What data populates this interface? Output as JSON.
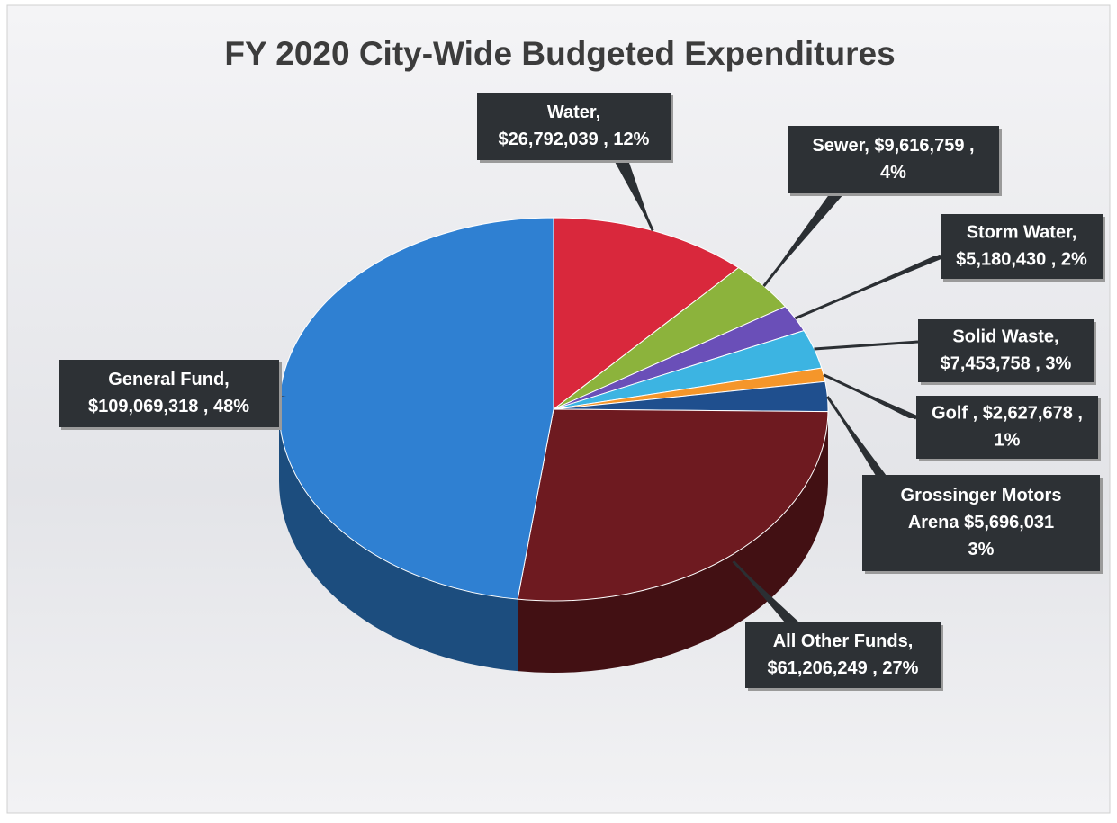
{
  "chart_data": {
    "type": "pie",
    "title": "FY 2020 City-Wide Budgeted Expenditures",
    "values": [
      26792039,
      9616759,
      5180430,
      7453758,
      2627678,
      5696031,
      61206249,
      109069318
    ],
    "value_labels": [
      [
        "Water,",
        "$26,792,039 , 12%"
      ],
      [
        "Sewer,  $9,616,759 ,",
        "4%"
      ],
      [
        "Storm Water,",
        "$5,180,430 , 2%"
      ],
      [
        "Solid Waste,",
        "$7,453,758 , 3%"
      ],
      [
        "Golf ,  $2,627,678 ,",
        "1%"
      ],
      [
        "Grossinger Motors",
        "Arena $5,696,031",
        "3%"
      ],
      [
        "All Other Funds,",
        "$61,206,249 , 27%"
      ],
      [
        "General Fund,",
        "$109,069,318 , 48%"
      ]
    ],
    "colors": [
      "#d9283c",
      "#8cb33c",
      "#6a4fb8",
      "#3cb4e2",
      "#f5962a",
      "#1f4f8e",
      "#6e1a20",
      "#2f80d2"
    ]
  }
}
